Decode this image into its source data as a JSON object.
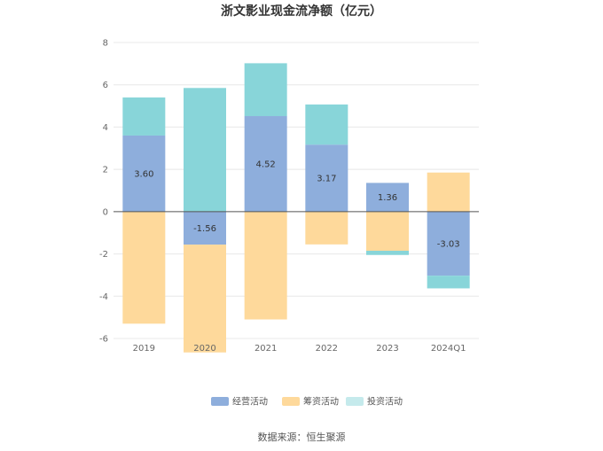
{
  "chart_data": {
    "type": "bar",
    "stacked": true,
    "title": "浙文影业现金流净额（亿元）",
    "categories": [
      "2019",
      "2020",
      "2021",
      "2022",
      "2023",
      "2024Q1"
    ],
    "series": [
      {
        "name": "经营活动",
        "color": "#8eaedc",
        "values": [
          3.6,
          -1.56,
          4.52,
          3.17,
          1.36,
          -3.03
        ]
      },
      {
        "name": "筹资活动",
        "color": "#fed99b",
        "values": [
          -5.3,
          -5.1,
          -5.1,
          -1.55,
          -1.85,
          1.85
        ]
      },
      {
        "name": "投资活动",
        "color": "#88d5d9",
        "values": [
          1.8,
          5.85,
          2.5,
          1.9,
          -0.2,
          -0.6
        ]
      }
    ],
    "data_labels": [
      "3.60",
      "-1.56",
      "4.52",
      "3.17",
      "1.36",
      "-3.03"
    ],
    "ylim": [
      -6,
      8
    ],
    "yticks": [
      8,
      6,
      4,
      2,
      0,
      -2,
      -4,
      -6
    ],
    "grid": true,
    "legend_position": "bottom",
    "source": "数据来源：恒生聚源"
  }
}
